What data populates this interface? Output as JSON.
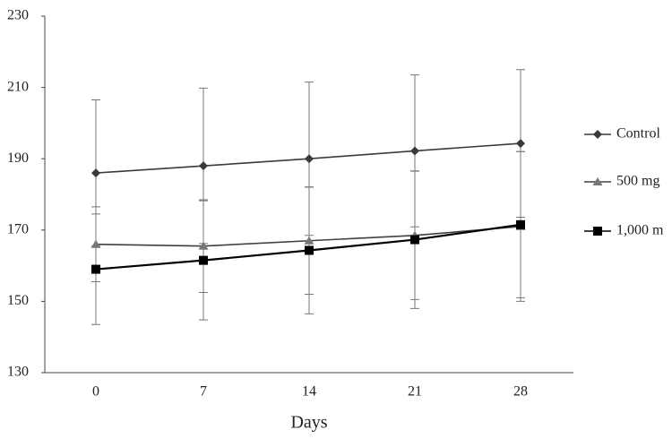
{
  "chart_data": {
    "type": "line",
    "x_label": "Days",
    "categories": [
      "0",
      "7",
      "14",
      "21",
      "28"
    ],
    "ylim": [
      130,
      230
    ],
    "yticks": [
      130,
      150,
      170,
      190,
      210,
      230
    ],
    "series": [
      {
        "name": "Control",
        "color": "#3a3a3a",
        "marker": "diamond",
        "values": [
          186,
          188,
          190,
          192.2,
          194.3
        ],
        "errors": [
          20.5,
          21.8,
          21.5,
          21.3,
          20.7
        ]
      },
      {
        "name": "500 mg",
        "color": "#404040",
        "marker": "triangle",
        "values": [
          166,
          165.5,
          167,
          168.5,
          171
        ],
        "errors": [
          10.5,
          13,
          15,
          18,
          21
        ]
      },
      {
        "name": "1,000 m",
        "color": "#000000",
        "marker": "square",
        "values": [
          159,
          161.5,
          164.3,
          167.3,
          171.5
        ],
        "errors": [
          15.5,
          16.7,
          17.8,
          19.3,
          20.5
        ]
      }
    ]
  }
}
